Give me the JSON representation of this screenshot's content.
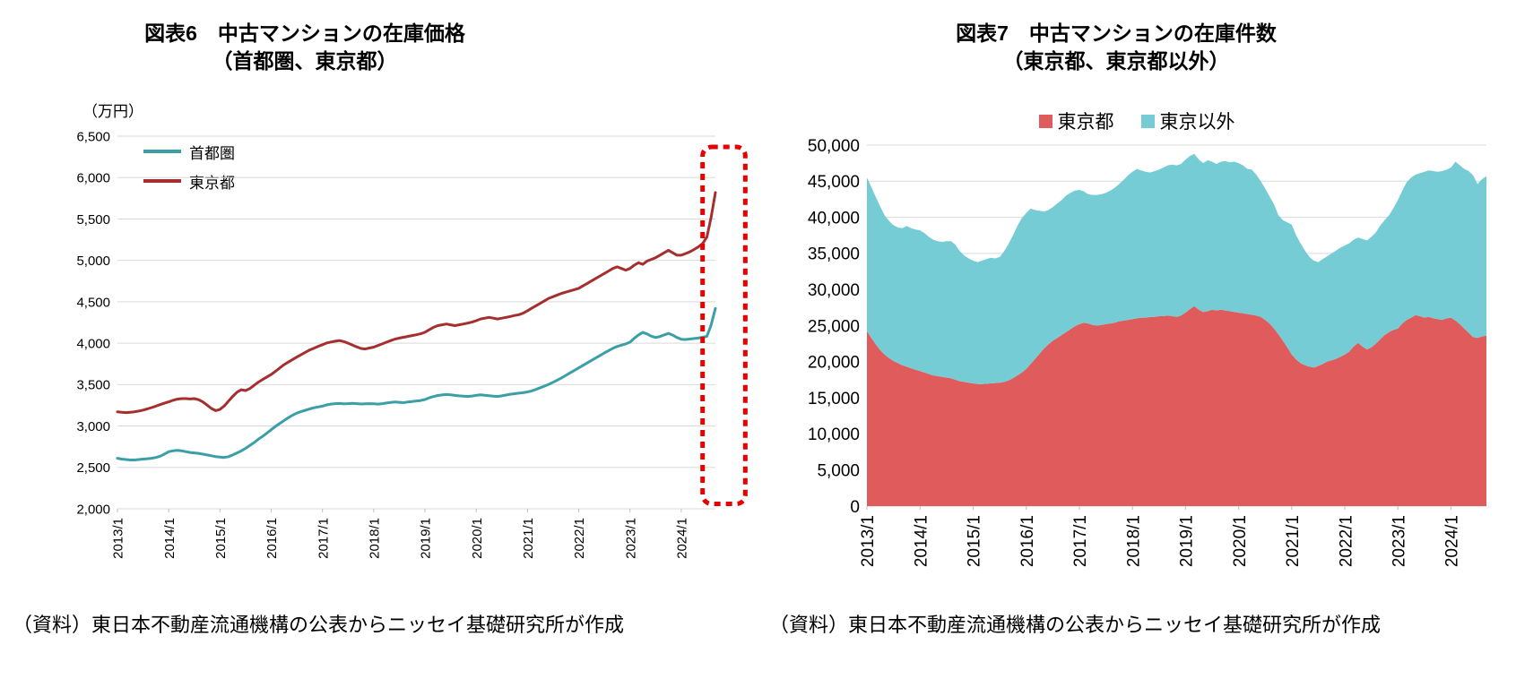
{
  "page": {
    "background": "#FFFFFF"
  },
  "source_note": "（資料）東日本不動産流通機構の公表からニッセイ基礎研究所が作成",
  "chart_data": [
    {
      "type": "line",
      "title": "図表6　中古マンションの在庫価格",
      "subtitle": "（首都圏、東京都）",
      "unit_label": "（万円）",
      "source": "（資料）東日本不動産流通機構の公表からニッセイ基礎研究所が作成",
      "x_start": "2013/1",
      "x_frequency": "monthly",
      "x_end": "2024/9",
      "x_tick_labels": [
        "2013/1",
        "2014/1",
        "2015/1",
        "2016/1",
        "2017/1",
        "2018/1",
        "2019/1",
        "2020/1",
        "2021/1",
        "2022/1",
        "2023/1",
        "2024/1"
      ],
      "ylim": [
        2000,
        6500
      ],
      "y_tick_step": 500,
      "grid": "horizontal",
      "legend_position": "top-left-inside",
      "annotation": {
        "shape": "dashed-rounded-box",
        "color": "#E60000",
        "month_from": 137,
        "month_to": 147,
        "value_from": 2060,
        "value_to": 6370,
        "meaning": "highlights sharp rise of latest months"
      },
      "series": [
        {
          "name": "首都圏",
          "color": "#3B9FA8",
          "values": [
            2610,
            2600,
            2595,
            2590,
            2590,
            2595,
            2600,
            2605,
            2610,
            2620,
            2635,
            2660,
            2690,
            2700,
            2705,
            2700,
            2690,
            2680,
            2675,
            2670,
            2660,
            2650,
            2640,
            2630,
            2625,
            2620,
            2630,
            2650,
            2675,
            2700,
            2730,
            2765,
            2800,
            2840,
            2875,
            2915,
            2955,
            2995,
            3030,
            3065,
            3100,
            3130,
            3155,
            3175,
            3190,
            3205,
            3220,
            3230,
            3240,
            3255,
            3265,
            3270,
            3272,
            3268,
            3270,
            3274,
            3270,
            3266,
            3268,
            3270,
            3268,
            3265,
            3270,
            3278,
            3284,
            3290,
            3286,
            3282,
            3290,
            3296,
            3302,
            3308,
            3320,
            3340,
            3355,
            3368,
            3375,
            3380,
            3376,
            3370,
            3364,
            3360,
            3356,
            3362,
            3370,
            3376,
            3372,
            3366,
            3360,
            3356,
            3364,
            3374,
            3384,
            3390,
            3396,
            3402,
            3412,
            3424,
            3442,
            3462,
            3482,
            3504,
            3528,
            3554,
            3582,
            3612,
            3642,
            3672,
            3702,
            3732,
            3762,
            3792,
            3822,
            3852,
            3882,
            3910,
            3938,
            3960,
            3976,
            3992,
            4012,
            4060,
            4100,
            4130,
            4112,
            4084,
            4068,
            4080,
            4100,
            4118,
            4098,
            4068,
            4048,
            4044,
            4050,
            4056,
            4062,
            4072,
            4082,
            4220,
            4420
          ]
        },
        {
          "name": "東京都",
          "color": "#A52F2F",
          "values": [
            3170,
            3165,
            3162,
            3166,
            3172,
            3180,
            3192,
            3206,
            3222,
            3240,
            3258,
            3275,
            3292,
            3310,
            3324,
            3330,
            3330,
            3326,
            3330,
            3318,
            3290,
            3252,
            3212,
            3186,
            3200,
            3242,
            3300,
            3358,
            3408,
            3438,
            3428,
            3452,
            3492,
            3530,
            3562,
            3592,
            3622,
            3660,
            3700,
            3740,
            3772,
            3802,
            3832,
            3862,
            3890,
            3918,
            3940,
            3962,
            3982,
            4002,
            4014,
            4024,
            4032,
            4020,
            4000,
            3978,
            3956,
            3936,
            3930,
            3942,
            3952,
            3972,
            3992,
            4012,
            4032,
            4050,
            4062,
            4072,
            4082,
            4092,
            4102,
            4114,
            4132,
            4162,
            4192,
            4212,
            4222,
            4232,
            4222,
            4212,
            4222,
            4232,
            4242,
            4254,
            4272,
            4292,
            4302,
            4312,
            4302,
            4292,
            4302,
            4312,
            4322,
            4334,
            4344,
            4362,
            4392,
            4422,
            4452,
            4482,
            4512,
            4542,
            4562,
            4582,
            4602,
            4617,
            4632,
            4647,
            4662,
            4692,
            4722,
            4752,
            4782,
            4812,
            4842,
            4872,
            4902,
            4922,
            4902,
            4882,
            4902,
            4942,
            4972,
            4952,
            4992,
            5012,
            5032,
            5062,
            5092,
            5122,
            5092,
            5062,
            5062,
            5082,
            5102,
            5132,
            5162,
            5202,
            5282,
            5520,
            5820
          ]
        }
      ]
    },
    {
      "type": "area",
      "stacked": true,
      "title": "図表7　中古マンションの在庫件数",
      "subtitle": "（東京都、東京都以外）",
      "source": "（資料）東日本不動産流通機構の公表からニッセイ基礎研究所が作成",
      "x_start": "2013/1",
      "x_frequency": "monthly",
      "x_end": "2024/9",
      "x_tick_labels": [
        "2013/1",
        "2014/1",
        "2015/1",
        "2016/1",
        "2017/1",
        "2018/1",
        "2019/1",
        "2020/1",
        "2021/1",
        "2022/1",
        "2023/1",
        "2024/1"
      ],
      "ylim": [
        0,
        50000
      ],
      "y_tick_step": 5000,
      "grid": "horizontal",
      "legend_position": "top-center",
      "series": [
        {
          "name": "東京都",
          "color": "#E05C5C",
          "values": [
            24200,
            23300,
            22400,
            21600,
            21000,
            20500,
            20100,
            19800,
            19500,
            19300,
            19100,
            18900,
            18700,
            18500,
            18300,
            18100,
            18000,
            17900,
            17800,
            17700,
            17500,
            17300,
            17200,
            17100,
            17000,
            16900,
            16900,
            16950,
            17000,
            17050,
            17100,
            17200,
            17400,
            17700,
            18100,
            18500,
            19000,
            19700,
            20400,
            21100,
            21800,
            22400,
            22900,
            23300,
            23700,
            24100,
            24500,
            24900,
            25200,
            25400,
            25300,
            25100,
            25000,
            25100,
            25200,
            25300,
            25400,
            25600,
            25700,
            25800,
            25900,
            26000,
            26100,
            26100,
            26200,
            26200,
            26300,
            26300,
            26400,
            26300,
            26200,
            26400,
            26800,
            27300,
            27700,
            27200,
            26900,
            27000,
            27200,
            27100,
            27200,
            27100,
            27000,
            26900,
            26800,
            26700,
            26600,
            26500,
            26400,
            26200,
            25800,
            25300,
            24600,
            23800,
            22900,
            22000,
            21000,
            20300,
            19800,
            19500,
            19300,
            19200,
            19400,
            19700,
            20000,
            20200,
            20400,
            20700,
            21000,
            21400,
            22100,
            22600,
            22100,
            21700,
            22000,
            22500,
            23100,
            23700,
            24100,
            24400,
            24600,
            25300,
            25800,
            26100,
            26450,
            26300,
            26100,
            26200,
            26000,
            25900,
            25800,
            26000,
            26100,
            25700,
            25200,
            24600,
            24000,
            23400,
            23300,
            23500,
            23600
          ]
        },
        {
          "name": "東京以外",
          "color": "#76CCD4",
          "values": [
            21300,
            20900,
            20400,
            19900,
            19300,
            19000,
            18800,
            18800,
            19000,
            19500,
            19400,
            19400,
            19500,
            19300,
            19000,
            18800,
            18700,
            18700,
            18900,
            19000,
            18700,
            18000,
            17500,
            17200,
            17000,
            16900,
            17100,
            17250,
            17400,
            17250,
            17400,
            18100,
            18900,
            19800,
            20700,
            21400,
            21600,
            21500,
            20600,
            19800,
            19000,
            18600,
            18500,
            18600,
            18700,
            18900,
            18900,
            18800,
            18600,
            18200,
            17900,
            18000,
            18100,
            18100,
            18200,
            18400,
            18700,
            19000,
            19500,
            20000,
            20400,
            20700,
            20400,
            20200,
            20000,
            20200,
            20300,
            20600,
            20800,
            21000,
            21000,
            21000,
            21200,
            21200,
            21100,
            20800,
            20600,
            20900,
            20500,
            20300,
            20500,
            20700,
            20600,
            20800,
            20700,
            20500,
            20100,
            20100,
            19500,
            18800,
            18200,
            17600,
            17200,
            16500,
            16700,
            17300,
            18000,
            17200,
            16600,
            15900,
            15200,
            14800,
            14400,
            14500,
            14600,
            14800,
            15000,
            15100,
            15100,
            15000,
            14800,
            14600,
            14900,
            15100,
            15300,
            15400,
            15750,
            15900,
            16200,
            16900,
            17800,
            18400,
            19100,
            19400,
            19450,
            19800,
            20200,
            20300,
            20400,
            20400,
            20600,
            20600,
            20800,
            22000,
            22000,
            22100,
            22400,
            22400,
            21300,
            21800,
            22100
          ]
        }
      ]
    }
  ]
}
